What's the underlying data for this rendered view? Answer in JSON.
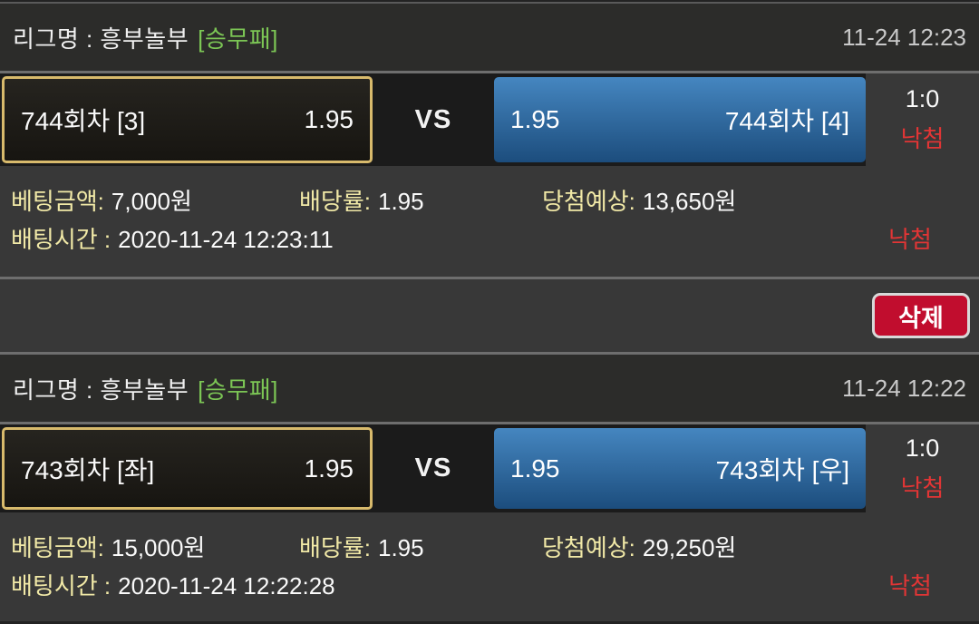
{
  "colors": {
    "header_bg": "#2c2c2a",
    "section_bg": "#383838",
    "strip_bg": "#1b1b1b",
    "gold_border": "#d8ba6c",
    "blue_top": "#4586c0",
    "blue_bottom": "#1c4d7d",
    "green_text": "#7cc655",
    "yellow_label": "#f1e9a7",
    "red_result": "#e23535",
    "delete_red": "#c10d2e"
  },
  "delete_button": {
    "label": "삭제"
  },
  "cards": [
    {
      "league_label": "리그명 : 흥부놀부",
      "league_type": "[승무패]",
      "timestamp": "11-24 12:23",
      "home_name": "744회차 [3]",
      "home_odds": "1.95",
      "vs_label": "VS",
      "away_odds": "1.95",
      "away_name": "744회차 [4]",
      "score": "1:0",
      "result": "낙첨",
      "bet_amount_label": "베팅금액:",
      "bet_amount": "7,000원",
      "odds_label": "배당률:",
      "odds_value": "1.95",
      "expected_label": "당첨예상:",
      "expected_value": "13,650원",
      "bet_time_label": "배팅시간 :",
      "bet_time": "2020-11-24 12:23:11",
      "result_bottom": "낙첨"
    },
    {
      "league_label": "리그명 : 흥부놀부",
      "league_type": "[승무패]",
      "timestamp": "11-24 12:22",
      "home_name": "743회차 [좌]",
      "home_odds": "1.95",
      "vs_label": "VS",
      "away_odds": "1.95",
      "away_name": "743회차 [우]",
      "score": "1:0",
      "result": "낙첨",
      "bet_amount_label": "베팅금액:",
      "bet_amount": "15,000원",
      "odds_label": "배당률:",
      "odds_value": "1.95",
      "expected_label": "당첨예상:",
      "expected_value": "29,250원",
      "bet_time_label": "배팅시간 :",
      "bet_time": "2020-11-24 12:22:28",
      "result_bottom": "낙첨"
    }
  ]
}
